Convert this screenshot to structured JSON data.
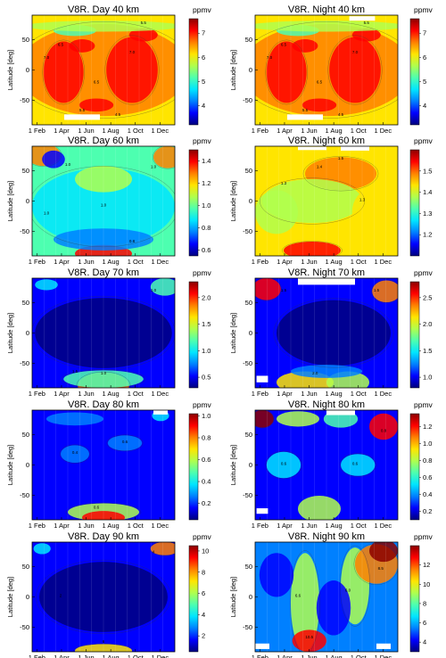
{
  "chart_data": [
    {
      "type": "heatmap",
      "title": "V8R. Day   40 km",
      "ylabel": "Latitude [deg]",
      "xticks": [
        "1 Feb",
        "1 Apr",
        "1 Jun",
        "1 Aug",
        "1 Oct",
        "1 Dec"
      ],
      "yticks": [
        "50",
        "0",
        "-50"
      ],
      "ylim": [
        -90,
        90
      ],
      "colorbar": {
        "unit": "ppmv",
        "range": [
          3.2,
          7.6
        ],
        "ticks": [
          "7",
          "6",
          "5",
          "4"
        ]
      }
    },
    {
      "type": "heatmap",
      "title": "V8R. Night   40 km",
      "ylabel": "Latitude [deg]",
      "xticks": [
        "1 Feb",
        "1 Apr",
        "1 Jun",
        "1 Aug",
        "1 Oct",
        "1 Dec"
      ],
      "yticks": [
        "50",
        "0",
        "-50"
      ],
      "ylim": [
        -90,
        90
      ],
      "colorbar": {
        "unit": "ppmv",
        "range": [
          3.2,
          7.6
        ],
        "ticks": [
          "7",
          "6",
          "5",
          "4"
        ]
      }
    },
    {
      "type": "heatmap",
      "title": "V8R. Day   60 km",
      "ylabel": "Latitude [deg]",
      "xticks": [
        "1 Feb",
        "1 Apr",
        "1 Jun",
        "1 Aug",
        "1 Oct",
        "1 Dec"
      ],
      "yticks": [
        "50",
        "0",
        "-50"
      ],
      "ylim": [
        -90,
        90
      ],
      "colorbar": {
        "unit": "ppmv",
        "range": [
          0.55,
          1.5
        ],
        "ticks": [
          "1.4",
          "1.2",
          "1.0",
          "0.8",
          "0.6"
        ]
      }
    },
    {
      "type": "heatmap",
      "title": "V8R. Night   60 km",
      "ylabel": "Latitude [deg]",
      "xticks": [
        "1 Feb",
        "1 Apr",
        "1 Jun",
        "1 Aug",
        "1 Oct",
        "1 Dec"
      ],
      "yticks": [
        "50",
        "0",
        "-50"
      ],
      "ylim": [
        -90,
        90
      ],
      "colorbar": {
        "unit": "ppmv",
        "range": [
          1.1,
          1.6
        ],
        "ticks": [
          "1.5",
          "1.4",
          "1.3",
          "1.2"
        ]
      }
    },
    {
      "type": "heatmap",
      "title": "V8R. Day   70 km",
      "ylabel": "Latitude [deg]",
      "xticks": [
        "1 Feb",
        "1 Apr",
        "1 Jun",
        "1 Aug",
        "1 Oct",
        "1 Dec"
      ],
      "yticks": [
        "50",
        "0",
        "-50"
      ],
      "ylim": [
        -90,
        90
      ],
      "colorbar": {
        "unit": "ppmv",
        "range": [
          0.3,
          2.3
        ],
        "ticks": [
          "2.0",
          "1.5",
          "1.0",
          "0.5"
        ]
      }
    },
    {
      "type": "heatmap",
      "title": "V8R. Night   70 km",
      "ylabel": "Latitude [deg]",
      "xticks": [
        "1 Feb",
        "1 Apr",
        "1 Jun",
        "1 Aug",
        "1 Oct",
        "1 Dec"
      ],
      "yticks": [
        "50",
        "0",
        "-50"
      ],
      "ylim": [
        -90,
        90
      ],
      "colorbar": {
        "unit": "ppmv",
        "range": [
          0.8,
          2.8
        ],
        "ticks": [
          "2.5",
          "2.0",
          "1.5",
          "1.0"
        ]
      }
    },
    {
      "type": "heatmap",
      "title": "V8R. Day   80 km",
      "ylabel": "Latitude [deg]",
      "xticks": [
        "1 Feb",
        "1 Apr",
        "1 Jun",
        "1 Aug",
        "1 Oct",
        "1 Dec"
      ],
      "yticks": [
        "50",
        "0",
        "-50"
      ],
      "ylim": [
        -90,
        90
      ],
      "colorbar": {
        "unit": "ppmv",
        "range": [
          0.05,
          1.02
        ],
        "ticks": [
          "1.0",
          "0.8",
          "0.6",
          "0.4",
          "0.2"
        ]
      }
    },
    {
      "type": "heatmap",
      "title": "V8R. Night   80 km",
      "ylabel": "Latitude [deg]",
      "xticks": [
        "1 Feb",
        "1 Apr",
        "1 Jun",
        "1 Aug",
        "1 Oct",
        "1 Dec"
      ],
      "yticks": [
        "50",
        "0",
        "-50"
      ],
      "ylim": [
        -90,
        90
      ],
      "colorbar": {
        "unit": "ppmv",
        "range": [
          0.1,
          1.35
        ],
        "ticks": [
          "1.2",
          "1.0",
          "0.8",
          "0.6",
          "0.4",
          "0.2"
        ]
      }
    },
    {
      "type": "heatmap",
      "title": "V8R. Day   90 km",
      "ylabel": "Latitude [deg]",
      "xticks": [
        "1 Feb",
        "1 Apr",
        "1 Jun",
        "1 Aug",
        "1 Oct",
        "1 Dec"
      ],
      "yticks": [
        "50",
        "0",
        "-50"
      ],
      "ylim": [
        -90,
        90
      ],
      "colorbar": {
        "unit": "ppmv",
        "range": [
          0.5,
          10.5
        ],
        "ticks": [
          "10",
          "8",
          "6",
          "4",
          "2"
        ]
      }
    },
    {
      "type": "heatmap",
      "title": "V8R. Night   90 km",
      "ylabel": "Latitude [deg]",
      "xticks": [
        "1 Feb",
        "1 Apr",
        "1 Jun",
        "1 Aug",
        "1 Oct",
        "1 Dec"
      ],
      "yticks": [
        "50",
        "0",
        "-50"
      ],
      "ylim": [
        -90,
        90
      ],
      "colorbar": {
        "unit": "ppmv",
        "range": [
          3,
          14
        ],
        "ticks": [
          "12",
          "10",
          "8",
          "6",
          "4"
        ]
      }
    }
  ],
  "contour_labels": [
    [
      "7.0",
      "7.0",
      "6.5",
      "6.5",
      "5.5",
      "5.5",
      "4.5"
    ],
    [
      "7.0",
      "7.0",
      "6.5",
      "6.5",
      "5.5",
      "5.5",
      "4.5"
    ],
    [
      "1.0",
      "1.0",
      "1.0",
      "1.0",
      "0.8"
    ],
    [
      "1.3",
      "1.3",
      "1.4",
      "1.5"
    ],
    [
      "1.0",
      "1.0",
      "1.5"
    ],
    [
      "1.5",
      "1.5",
      "2.0"
    ],
    [
      "0.4",
      "0.6",
      "0.6"
    ],
    [
      "0.6",
      "0.8",
      "0.6"
    ],
    [
      "4",
      "6",
      "2"
    ],
    [
      "6.6",
      "6.0",
      "8.5",
      "10.5"
    ]
  ]
}
